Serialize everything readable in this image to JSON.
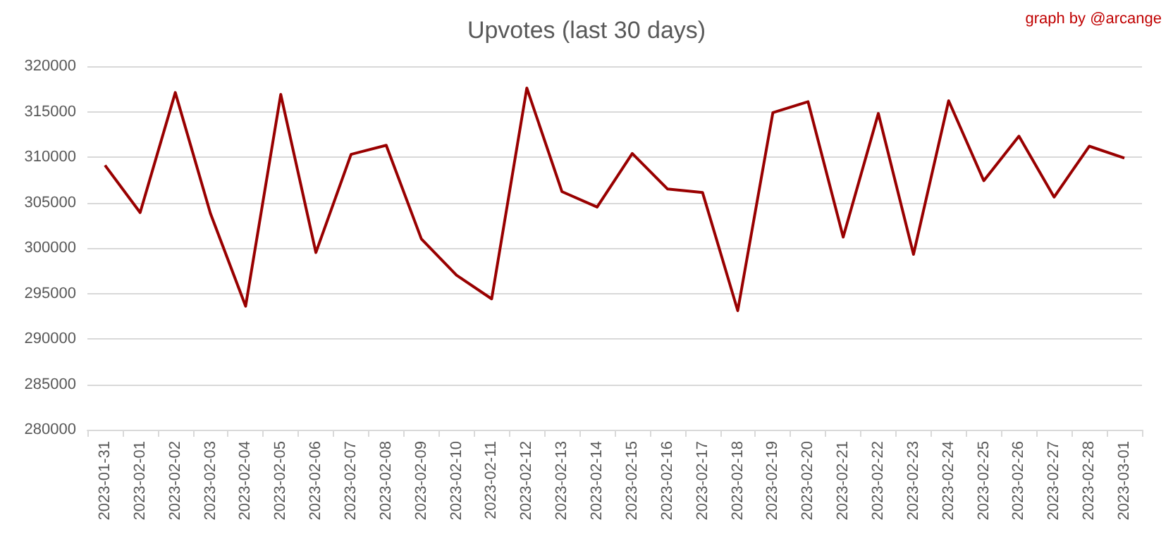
{
  "chart_data": {
    "type": "line",
    "title": "Upvotes (last 30 days)",
    "annotations": [
      "graph by @arcange"
    ],
    "categories": [
      "2023-01-31",
      "2023-02-01",
      "2023-02-02",
      "2023-02-03",
      "2023-02-04",
      "2023-02-05",
      "2023-02-06",
      "2023-02-07",
      "2023-02-08",
      "2023-02-09",
      "2023-02-10",
      "2023-02-11",
      "2023-02-12",
      "2023-02-13",
      "2023-02-14",
      "2023-02-15",
      "2023-02-16",
      "2023-02-17",
      "2023-02-18",
      "2023-02-19",
      "2023-02-20",
      "2023-02-21",
      "2023-02-22",
      "2023-02-23",
      "2023-02-24",
      "2023-02-25",
      "2023-02-26",
      "2023-02-27",
      "2023-02-28",
      "2023-03-01"
    ],
    "series": [
      {
        "color": "#990000",
        "values": [
          309100,
          303900,
          317100,
          303800,
          293600,
          316900,
          299500,
          310300,
          311300,
          301000,
          297000,
          294400,
          317600,
          306200,
          304500,
          310400,
          306500,
          306100,
          293100,
          314900,
          316100,
          301200,
          314800,
          299300,
          316200,
          307400,
          312300,
          305600,
          311200,
          309900
        ]
      }
    ],
    "ylim": [
      280000,
      320000
    ],
    "yticks": [
      280000,
      285000,
      290000,
      295000,
      300000,
      305000,
      310000,
      315000,
      320000
    ],
    "grid": "y",
    "marker": "none",
    "line_style": "solid"
  }
}
